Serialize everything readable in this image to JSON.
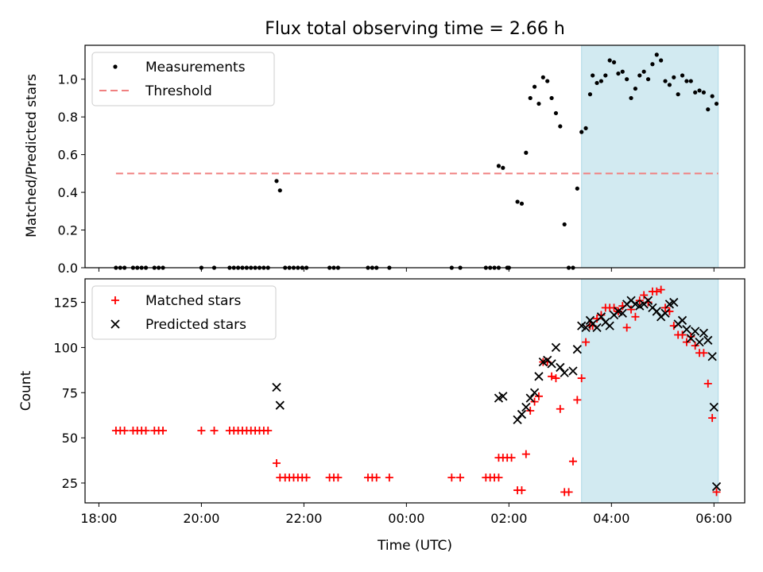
{
  "title": "Flux total observing time = 2.66 h",
  "xlabel": "Time (UTC)",
  "shaded_region": {
    "start": "03:25",
    "end": "06:05",
    "color": "#add8e6"
  },
  "chart_data": [
    {
      "type": "scatter",
      "ylabel": "Matched/Predicted stars",
      "ylim": [
        0,
        1.18
      ],
      "yticks": [
        "0.0",
        "0.2",
        "0.4",
        "0.6",
        "0.8",
        "1.0"
      ],
      "legend_position": "top-left",
      "legend": [
        "Measurements",
        "Threshold"
      ],
      "series": [
        {
          "name": "Measurements",
          "color": "#000000",
          "marker": "dot",
          "points": [
            [
              "18:20",
              0
            ],
            [
              "18:25",
              0
            ],
            [
              "18:30",
              0
            ],
            [
              "18:40",
              0
            ],
            [
              "18:45",
              0
            ],
            [
              "18:50",
              0
            ],
            [
              "18:55",
              0
            ],
            [
              "19:05",
              0
            ],
            [
              "19:10",
              0
            ],
            [
              "19:15",
              0
            ],
            [
              "20:00",
              0
            ],
            [
              "20:15",
              0
            ],
            [
              "20:33",
              0
            ],
            [
              "20:38",
              0
            ],
            [
              "20:43",
              0
            ],
            [
              "20:48",
              0
            ],
            [
              "20:53",
              0
            ],
            [
              "20:58",
              0
            ],
            [
              "21:03",
              0
            ],
            [
              "21:08",
              0
            ],
            [
              "21:13",
              0
            ],
            [
              "21:18",
              0
            ],
            [
              "21:28",
              0.46
            ],
            [
              "21:32",
              0.41
            ],
            [
              "21:38",
              0
            ],
            [
              "21:43",
              0
            ],
            [
              "21:48",
              0
            ],
            [
              "21:53",
              0
            ],
            [
              "21:58",
              0
            ],
            [
              "22:03",
              0
            ],
            [
              "22:30",
              0
            ],
            [
              "22:35",
              0
            ],
            [
              "22:40",
              0
            ],
            [
              "23:15",
              0
            ],
            [
              "23:20",
              0
            ],
            [
              "23:25",
              0
            ],
            [
              "23:40",
              0
            ],
            [
              "00:53",
              0
            ],
            [
              "01:03",
              0
            ],
            [
              "01:33",
              0
            ],
            [
              "01:38",
              0
            ],
            [
              "01:43",
              0
            ],
            [
              "01:48",
              0
            ],
            [
              "01:48",
              0.54
            ],
            [
              "01:53",
              0.53
            ],
            [
              "01:58",
              0
            ],
            [
              "02:00",
              0
            ],
            [
              "02:10",
              0.35
            ],
            [
              "02:15",
              0.34
            ],
            [
              "02:20",
              0.61
            ],
            [
              "02:25",
              0.9
            ],
            [
              "02:30",
              0.96
            ],
            [
              "02:35",
              0.87
            ],
            [
              "02:40",
              1.01
            ],
            [
              "02:45",
              0.99
            ],
            [
              "02:50",
              0.9
            ],
            [
              "02:55",
              0.82
            ],
            [
              "03:00",
              0.75
            ],
            [
              "03:05",
              0.23
            ],
            [
              "03:10",
              0
            ],
            [
              "03:15",
              0
            ],
            [
              "03:20",
              0.42
            ],
            [
              "03:25",
              0.72
            ],
            [
              "03:30",
              0.74
            ],
            [
              "03:35",
              0.92
            ],
            [
              "03:38",
              1.02
            ],
            [
              "03:43",
              0.98
            ],
            [
              "03:48",
              0.99
            ],
            [
              "03:53",
              1.02
            ],
            [
              "03:58",
              1.1
            ],
            [
              "04:03",
              1.09
            ],
            [
              "04:08",
              1.03
            ],
            [
              "04:13",
              1.04
            ],
            [
              "04:18",
              1.0
            ],
            [
              "04:23",
              0.9
            ],
            [
              "04:28",
              0.95
            ],
            [
              "04:33",
              1.02
            ],
            [
              "04:38",
              1.04
            ],
            [
              "04:43",
              1.0
            ],
            [
              "04:48",
              1.08
            ],
            [
              "04:53",
              1.13
            ],
            [
              "04:58",
              1.1
            ],
            [
              "05:03",
              0.99
            ],
            [
              "05:08",
              0.97
            ],
            [
              "05:13",
              1.01
            ],
            [
              "05:18",
              0.92
            ],
            [
              "05:23",
              1.02
            ],
            [
              "05:28",
              0.99
            ],
            [
              "05:33",
              0.99
            ],
            [
              "05:38",
              0.93
            ],
            [
              "05:43",
              0.94
            ],
            [
              "05:48",
              0.93
            ],
            [
              "05:53",
              0.84
            ],
            [
              "05:58",
              0.91
            ],
            [
              "06:03",
              0.87
            ]
          ]
        },
        {
          "name": "Threshold",
          "color": "#f08080",
          "style": "dashed",
          "x": [
            "18:20",
            "06:05"
          ],
          "y": [
            0.5,
            0.5
          ]
        }
      ]
    },
    {
      "type": "scatter",
      "ylabel": "Count",
      "ylim": [
        14,
        138
      ],
      "yticks": [
        "25",
        "50",
        "75",
        "100",
        "125"
      ],
      "xticks": [
        "18:00",
        "20:00",
        "22:00",
        "00:00",
        "02:00",
        "04:00",
        "06:00"
      ],
      "legend_position": "top-left",
      "legend": [
        "Matched stars",
        "Predicted stars"
      ],
      "series": [
        {
          "name": "Matched stars",
          "color": "#ff0000",
          "marker": "plus",
          "points": [
            [
              "18:20",
              54
            ],
            [
              "18:25",
              54
            ],
            [
              "18:30",
              54
            ],
            [
              "18:40",
              54
            ],
            [
              "18:45",
              54
            ],
            [
              "18:50",
              54
            ],
            [
              "18:55",
              54
            ],
            [
              "19:05",
              54
            ],
            [
              "19:10",
              54
            ],
            [
              "19:15",
              54
            ],
            [
              "20:00",
              54
            ],
            [
              "20:15",
              54
            ],
            [
              "20:33",
              54
            ],
            [
              "20:38",
              54
            ],
            [
              "20:43",
              54
            ],
            [
              "20:48",
              54
            ],
            [
              "20:53",
              54
            ],
            [
              "20:58",
              54
            ],
            [
              "21:03",
              54
            ],
            [
              "21:08",
              54
            ],
            [
              "21:13",
              54
            ],
            [
              "21:18",
              54
            ],
            [
              "21:28",
              36
            ],
            [
              "21:32",
              28
            ],
            [
              "21:38",
              28
            ],
            [
              "21:43",
              28
            ],
            [
              "21:48",
              28
            ],
            [
              "21:53",
              28
            ],
            [
              "21:58",
              28
            ],
            [
              "22:03",
              28
            ],
            [
              "22:30",
              28
            ],
            [
              "22:35",
              28
            ],
            [
              "22:40",
              28
            ],
            [
              "23:15",
              28
            ],
            [
              "23:20",
              28
            ],
            [
              "23:25",
              28
            ],
            [
              "23:40",
              28
            ],
            [
              "00:53",
              28
            ],
            [
              "01:03",
              28
            ],
            [
              "01:33",
              28
            ],
            [
              "01:38",
              28
            ],
            [
              "01:43",
              28
            ],
            [
              "01:48",
              28
            ],
            [
              "01:48",
              39
            ],
            [
              "01:53",
              39
            ],
            [
              "01:58",
              39
            ],
            [
              "02:03",
              39
            ],
            [
              "02:10",
              21
            ],
            [
              "02:15",
              21
            ],
            [
              "02:20",
              41
            ],
            [
              "02:25",
              65
            ],
            [
              "02:30",
              70
            ],
            [
              "02:35",
              73
            ],
            [
              "02:40",
              92
            ],
            [
              "02:45",
              92
            ],
            [
              "02:50",
              84
            ],
            [
              "02:55",
              83
            ],
            [
              "03:00",
              66
            ],
            [
              "03:05",
              20
            ],
            [
              "03:10",
              20
            ],
            [
              "03:15",
              37
            ],
            [
              "03:20",
              71
            ],
            [
              "03:25",
              83
            ],
            [
              "03:30",
              103
            ],
            [
              "03:35",
              112
            ],
            [
              "03:38",
              112
            ],
            [
              "03:43",
              116
            ],
            [
              "03:48",
              118
            ],
            [
              "03:53",
              122
            ],
            [
              "03:58",
              122
            ],
            [
              "04:03",
              122
            ],
            [
              "04:08",
              120
            ],
            [
              "04:13",
              123
            ],
            [
              "04:18",
              111
            ],
            [
              "04:23",
              121
            ],
            [
              "04:28",
              117
            ],
            [
              "04:33",
              126
            ],
            [
              "04:38",
              129
            ],
            [
              "04:43",
              125
            ],
            [
              "04:48",
              131
            ],
            [
              "04:53",
              131
            ],
            [
              "04:58",
              132
            ],
            [
              "05:03",
              122
            ],
            [
              "05:08",
              120
            ],
            [
              "05:13",
              112
            ],
            [
              "05:18",
              107
            ],
            [
              "05:23",
              107
            ],
            [
              "05:28",
              103
            ],
            [
              "05:33",
              106
            ],
            [
              "05:38",
              101
            ],
            [
              "05:43",
              97
            ],
            [
              "05:48",
              97
            ],
            [
              "05:53",
              80
            ],
            [
              "05:58",
              61
            ],
            [
              "06:03",
              20
            ]
          ]
        },
        {
          "name": "Predicted stars",
          "color": "#000000",
          "marker": "x",
          "points": [
            [
              "21:28",
              78
            ],
            [
              "21:32",
              68
            ],
            [
              "01:48",
              72
            ],
            [
              "01:53",
              73
            ],
            [
              "02:10",
              60
            ],
            [
              "02:15",
              63
            ],
            [
              "02:20",
              67
            ],
            [
              "02:25",
              72
            ],
            [
              "02:30",
              75
            ],
            [
              "02:35",
              84
            ],
            [
              "02:40",
              92
            ],
            [
              "02:45",
              93
            ],
            [
              "02:50",
              91
            ],
            [
              "02:55",
              100
            ],
            [
              "03:00",
              89
            ],
            [
              "03:05",
              86
            ],
            [
              "03:15",
              87
            ],
            [
              "03:20",
              99
            ],
            [
              "03:25",
              112
            ],
            [
              "03:30",
              111
            ],
            [
              "03:35",
              115
            ],
            [
              "03:38",
              113
            ],
            [
              "03:43",
              111
            ],
            [
              "03:48",
              117
            ],
            [
              "03:53",
              114
            ],
            [
              "03:58",
              112
            ],
            [
              "04:03",
              118
            ],
            [
              "04:08",
              120
            ],
            [
              "04:13",
              119
            ],
            [
              "04:18",
              124
            ],
            [
              "04:23",
              126
            ],
            [
              "04:28",
              124
            ],
            [
              "04:33",
              123
            ],
            [
              "04:38",
              124
            ],
            [
              "04:43",
              126
            ],
            [
              "04:48",
              122
            ],
            [
              "04:53",
              120
            ],
            [
              "04:58",
              117
            ],
            [
              "05:03",
              119
            ],
            [
              "05:08",
              124
            ],
            [
              "05:13",
              125
            ],
            [
              "05:18",
              113
            ],
            [
              "05:23",
              115
            ],
            [
              "05:28",
              110
            ],
            [
              "05:33",
              105
            ],
            [
              "05:38",
              109
            ],
            [
              "05:43",
              103
            ],
            [
              "05:48",
              108
            ],
            [
              "05:53",
              104
            ],
            [
              "05:58",
              95
            ],
            [
              "06:00",
              67
            ],
            [
              "06:03",
              23
            ]
          ]
        }
      ]
    }
  ]
}
